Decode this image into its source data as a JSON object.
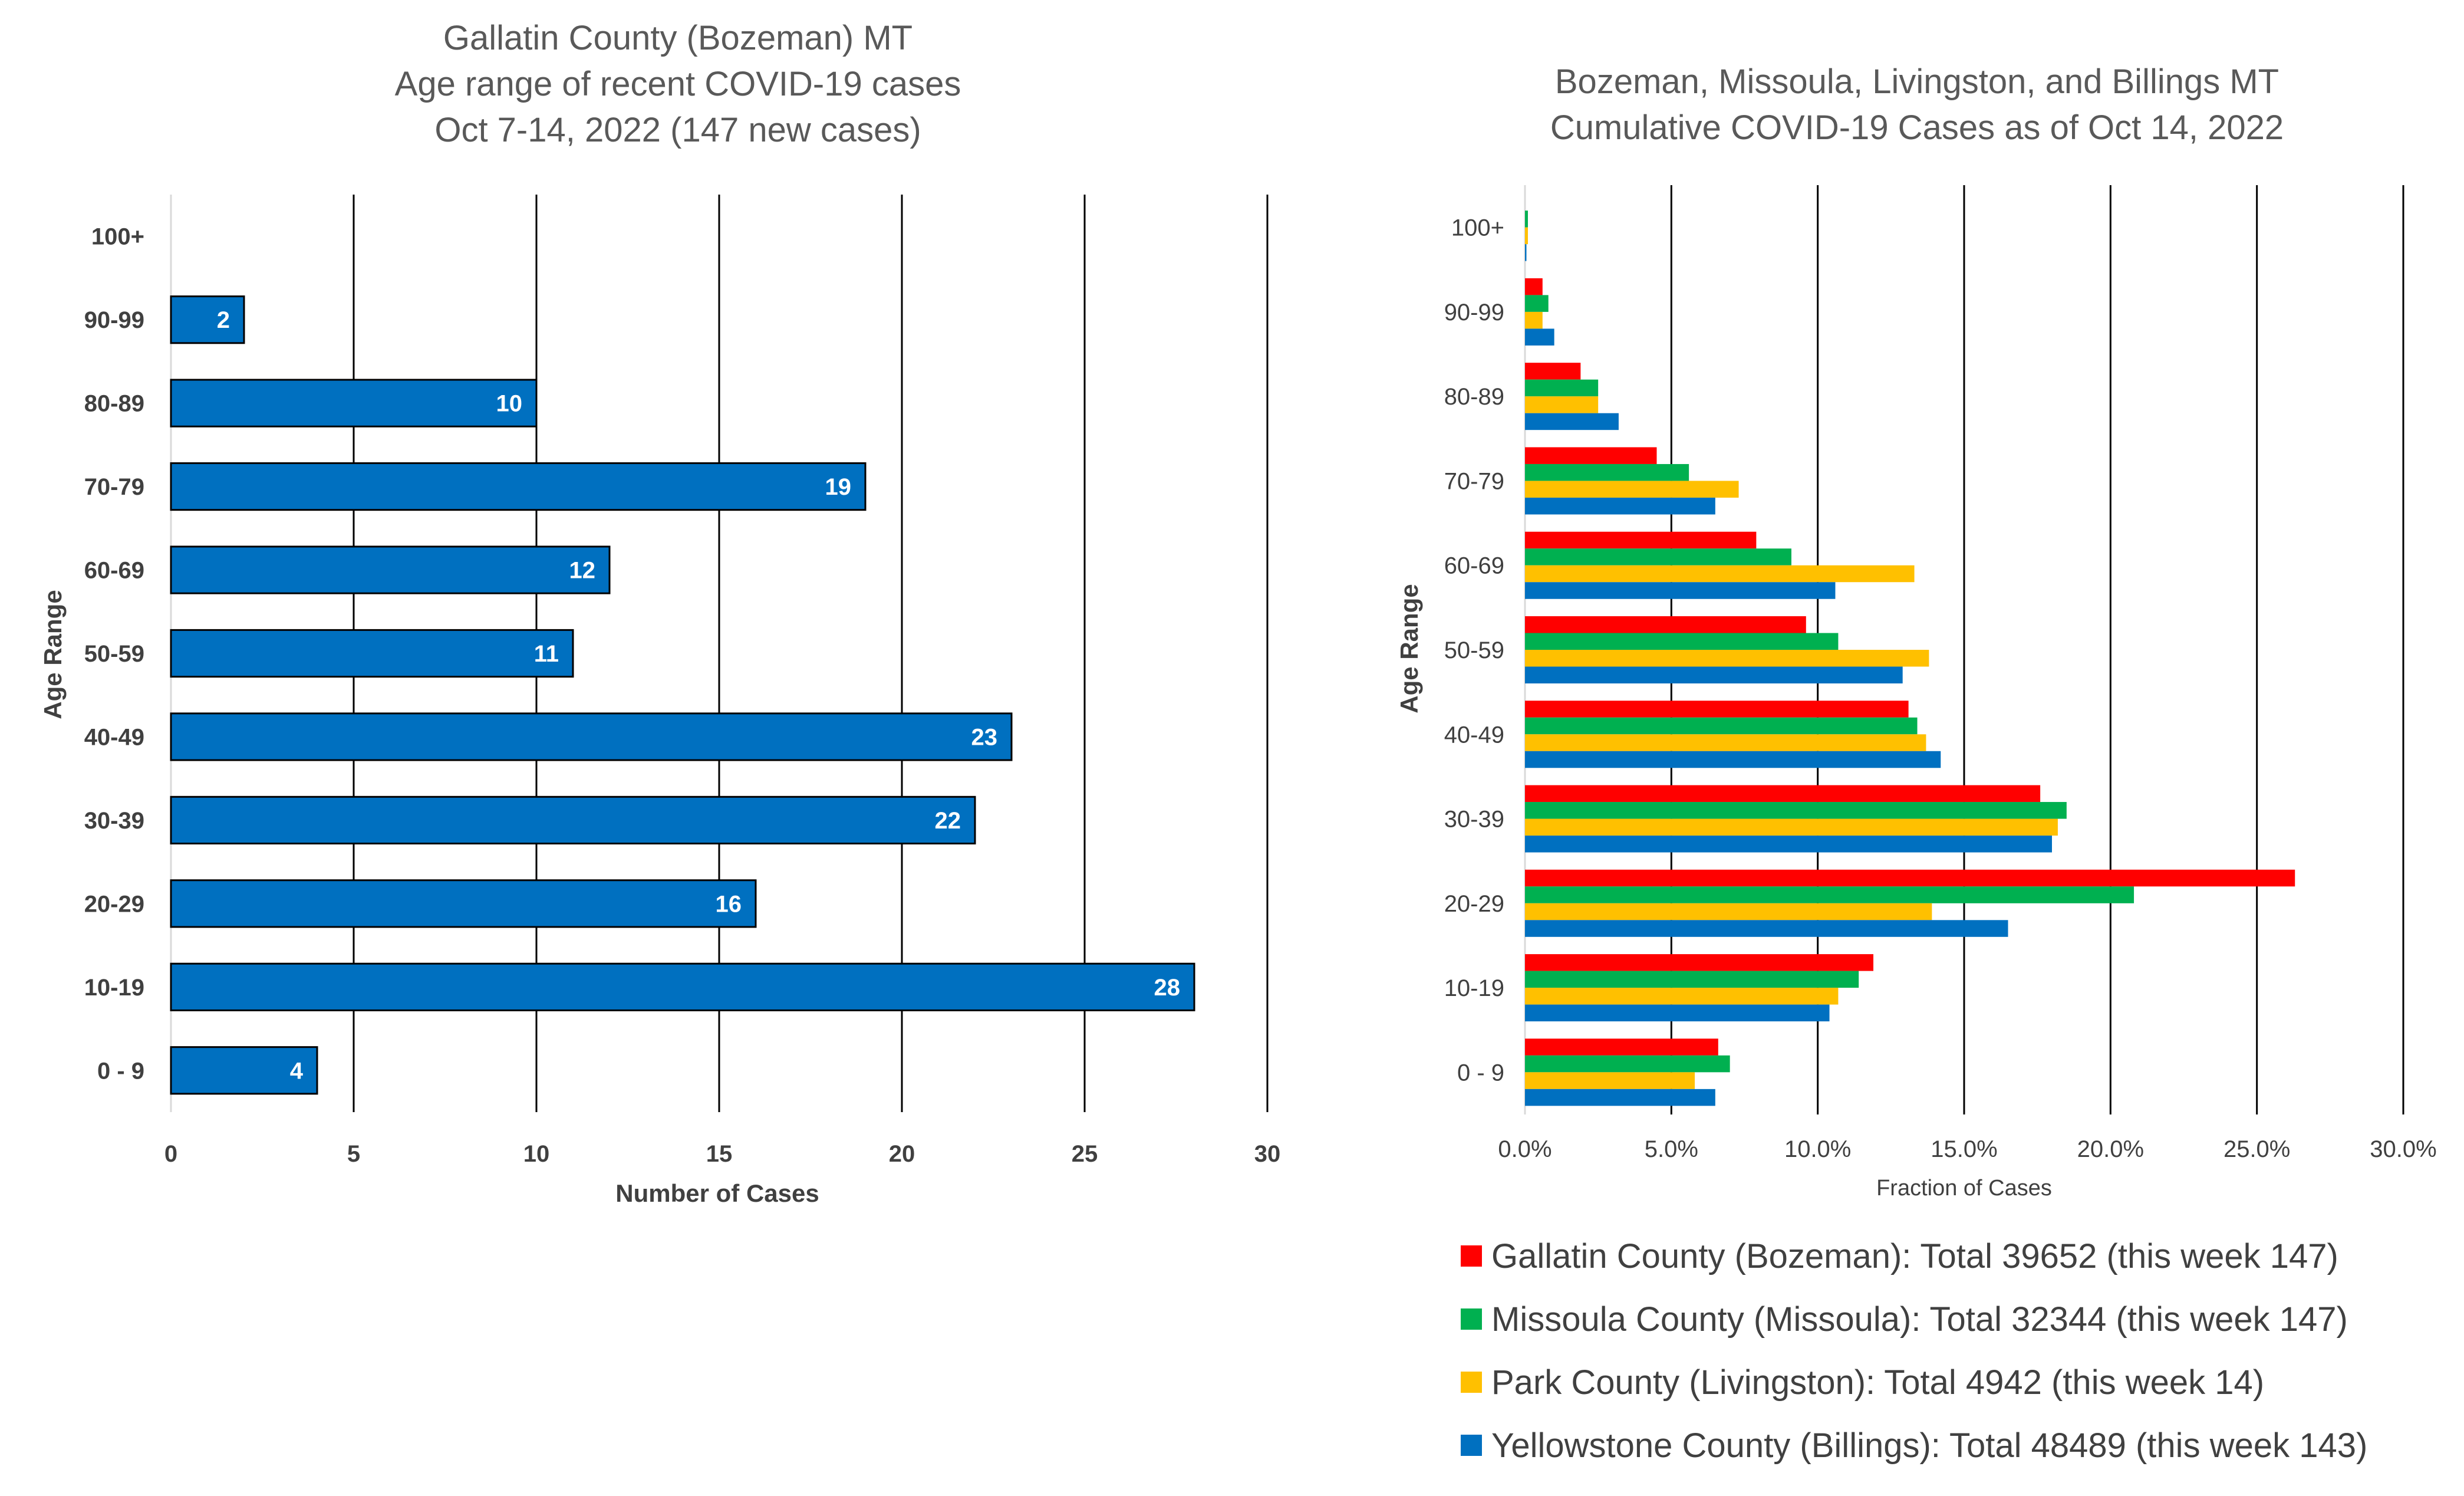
{
  "chart_data": [
    {
      "type": "bar",
      "orientation": "horizontal",
      "title_lines": [
        "Gallatin County (Bozeman) MT",
        "Age range of recent COVID-19 cases",
        "Oct 7-14, 2022 (147 new cases)"
      ],
      "xlabel": "Number of Cases",
      "ylabel": "Age Range",
      "categories": [
        "0 - 9",
        "10-19",
        "20-29",
        "30-39",
        "40-49",
        "50-59",
        "60-69",
        "70-79",
        "80-89",
        "90-99",
        "100+"
      ],
      "values": [
        4,
        28,
        16,
        22,
        23,
        11,
        12,
        19,
        10,
        2,
        0
      ],
      "data_labels": [
        "4",
        "28",
        "16",
        "22",
        "23",
        "11",
        "12",
        "19",
        "10",
        "2",
        ""
      ],
      "xlim": [
        0,
        30
      ],
      "xticks": [
        "0",
        "5",
        "10",
        "15",
        "20",
        "25",
        "30"
      ],
      "grid": "vertical",
      "bar_color": "#0070C0"
    },
    {
      "type": "bar",
      "orientation": "horizontal",
      "title_lines": [
        "Bozeman, Missoula, Livingston, and Billings MT",
        "Cumulative COVID-19 Cases as of Oct 14, 2022"
      ],
      "xlabel": "Fraction of Cases",
      "ylabel": "Age Range",
      "categories": [
        "0 - 9",
        "10-19",
        "20-29",
        "30-39",
        "40-49",
        "50-59",
        "60-69",
        "70-79",
        "80-89",
        "90-99",
        "100+"
      ],
      "xlim": [
        0,
        30
      ],
      "xticks": [
        "0.0%",
        "5.0%",
        "10.0%",
        "15.0%",
        "20.0%",
        "25.0%",
        "30.0%"
      ],
      "grid": "vertical",
      "legend_position": "bottom",
      "series": [
        {
          "name": "Gallatin County (Bozeman): Total 39652 (this week 147)",
          "color": "#FF0000",
          "values": [
            6.6,
            11.9,
            26.3,
            17.6,
            13.1,
            9.6,
            7.9,
            4.5,
            1.9,
            0.6,
            0.0
          ]
        },
        {
          "name": "Missoula County (Missoula): Total 32344 (this week 147)",
          "color": "#00B050",
          "values": [
            7.0,
            11.4,
            20.8,
            18.5,
            13.4,
            10.7,
            9.1,
            5.6,
            2.5,
            0.8,
            0.1
          ]
        },
        {
          "name": "Park County (Livingston): Total 4942 (this week 14)",
          "color": "#FFC000",
          "values": [
            5.8,
            10.7,
            13.9,
            18.2,
            13.7,
            13.8,
            13.3,
            7.3,
            2.5,
            0.6,
            0.1
          ]
        },
        {
          "name": "Yellowstone County (Billings): Total 48489 (this week 143)",
          "color": "#0070C0",
          "values": [
            6.5,
            10.4,
            16.5,
            18.0,
            14.2,
            12.9,
            10.6,
            6.5,
            3.2,
            1.0,
            0.05
          ]
        }
      ]
    }
  ]
}
